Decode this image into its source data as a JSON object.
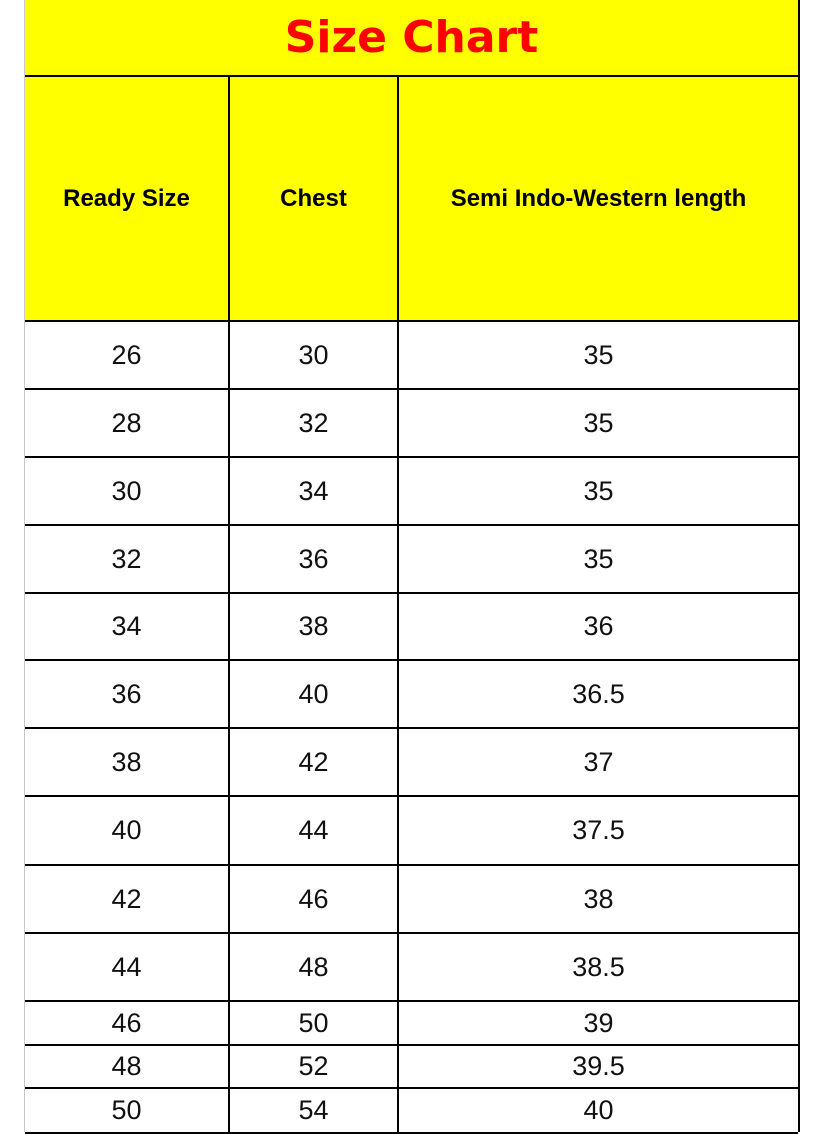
{
  "title": "Size Chart",
  "colors": {
    "header_bg": "#ffff00",
    "title_text": "#ff0000",
    "border": "#000000"
  },
  "columns": [
    "Ready Size",
    "Chest",
    "Semi Indo-Western length"
  ],
  "rows": [
    [
      "26",
      "30",
      "35"
    ],
    [
      "28",
      "32",
      "35"
    ],
    [
      "30",
      "34",
      "35"
    ],
    [
      "32",
      "36",
      "35"
    ],
    [
      "34",
      "38",
      "36"
    ],
    [
      "36",
      "40",
      "36.5"
    ],
    [
      "38",
      "42",
      "37"
    ],
    [
      "40",
      "44",
      "37.5"
    ],
    [
      "42",
      "46",
      "38"
    ],
    [
      "44",
      "48",
      "38.5"
    ],
    [
      "46",
      "50",
      "39"
    ],
    [
      "48",
      "52",
      "39.5"
    ],
    [
      "50",
      "54",
      "40"
    ]
  ]
}
